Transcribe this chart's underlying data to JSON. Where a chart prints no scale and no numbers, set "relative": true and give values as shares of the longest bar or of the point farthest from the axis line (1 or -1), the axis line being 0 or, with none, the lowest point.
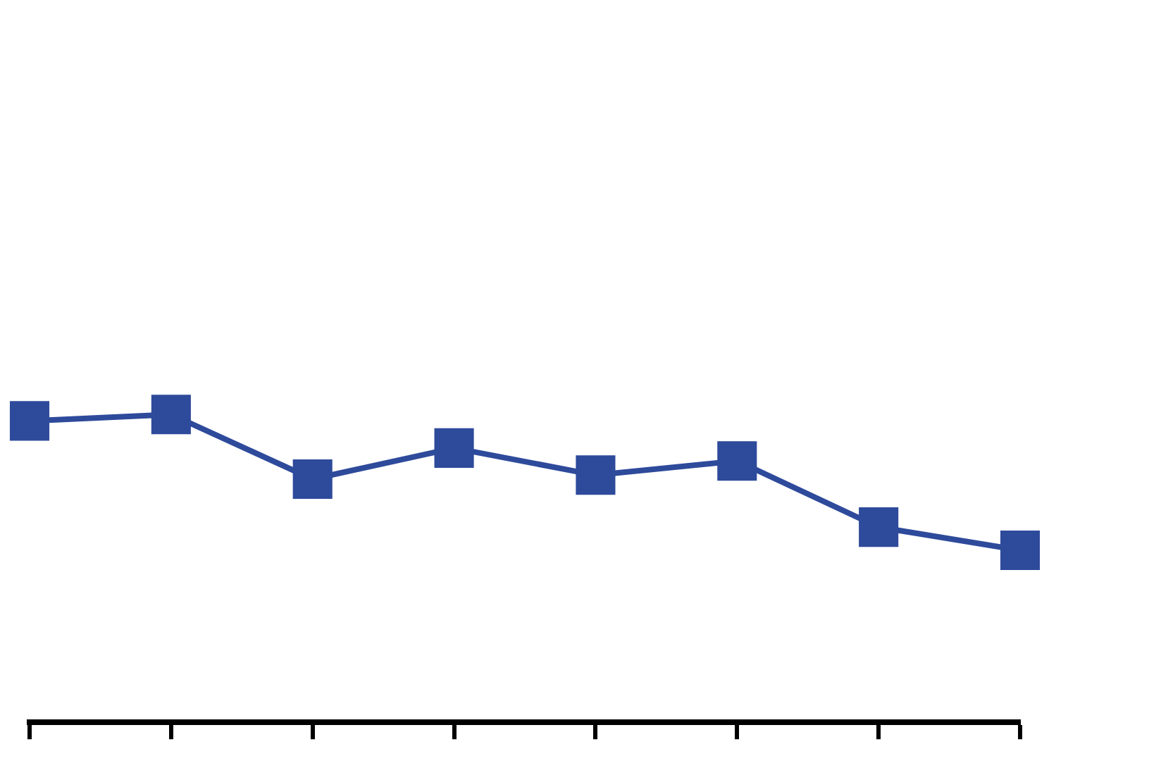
{
  "chart_data": {
    "type": "line",
    "relative": true,
    "categories": [
      null,
      null,
      null,
      null,
      null,
      null,
      null,
      null
    ],
    "series": [
      {
        "color": "#2e4a9b",
        "values": [
          0.979,
          1,
          0.79,
          0.891,
          0.803,
          0.849,
          0.634,
          0.559
        ]
      }
    ],
    "marker": "square",
    "line_style": "solid",
    "grid": false,
    "legend": false
  }
}
